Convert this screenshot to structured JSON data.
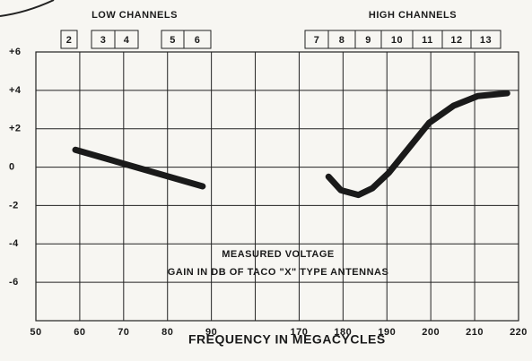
{
  "chart_data": {
    "type": "line",
    "xlabel": "FREQUENCY IN MEGACYCLES",
    "annotations": [
      "MEASURED VOLTAGE",
      "GAIN IN DB OF TACO \"X\" TYPE ANTENNAS"
    ],
    "channel_groups": [
      {
        "label": "LOW CHANNELS",
        "channels": [
          "2",
          "3",
          "4",
          "5",
          "6"
        ]
      },
      {
        "label": "HIGH CHANNELS",
        "channels": [
          "7",
          "8",
          "9",
          "10",
          "11",
          "12",
          "13"
        ]
      }
    ],
    "xlim": [
      50,
      220
    ],
    "xticks": [
      50,
      60,
      70,
      80,
      90,
      170,
      180,
      190,
      200,
      210,
      220
    ],
    "ylim": [
      -8,
      6
    ],
    "yticks": [
      {
        "value": 6,
        "label": "+6"
      },
      {
        "value": 4,
        "label": "+4"
      },
      {
        "value": 2,
        "label": "+2"
      },
      0,
      -2,
      -4,
      -6
    ],
    "grid": true,
    "series": [
      {
        "color": "#1a1a1a",
        "x": [
          59,
          88
        ],
        "values": [
          0.9,
          -1.0
        ]
      },
      {
        "color": "#1a1a1a",
        "x": [
          176.7,
          179.5,
          183.5,
          186.7,
          190.4,
          195,
          199.6,
          205.2,
          210.7,
          217.4
        ],
        "values": [
          -0.5,
          -1.2,
          -1.45,
          -1.1,
          -0.3,
          1.0,
          2.3,
          3.2,
          3.7,
          3.85
        ]
      }
    ]
  }
}
